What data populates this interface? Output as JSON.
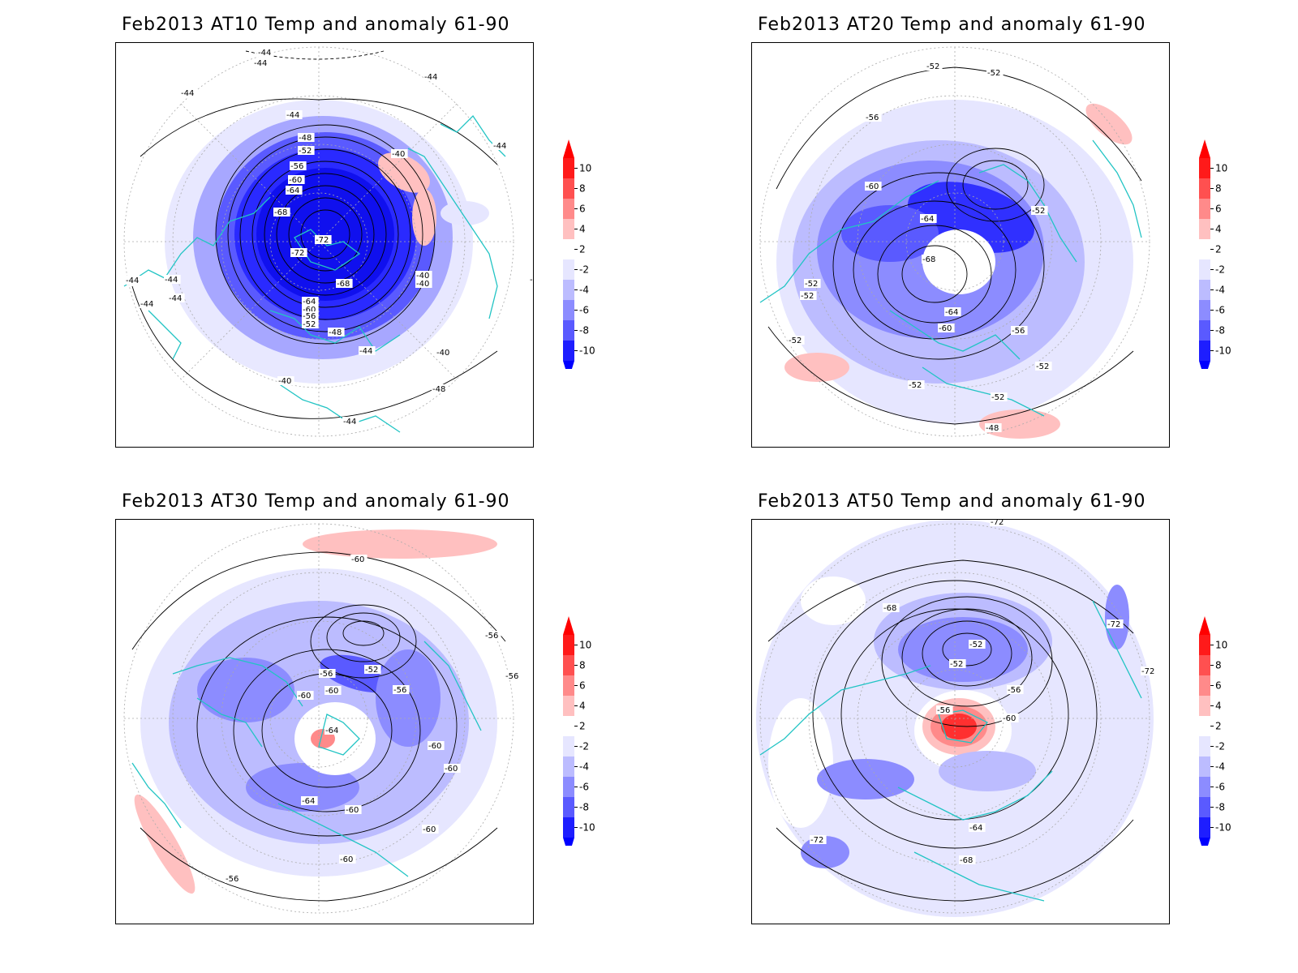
{
  "colorbar": {
    "ticks": [
      "10",
      "8",
      "6",
      "4",
      "2",
      "-2",
      "-4",
      "-6",
      "-8",
      "-10"
    ],
    "colors": [
      "#ff1a1a",
      "#ff5050",
      "#ff8a8a",
      "#ffc0c0",
      "#ffffff",
      "#e6e6ff",
      "#bcbcff",
      "#8c8cff",
      "#5a5aff",
      "#1e1eff"
    ],
    "over_color": "#ff0000",
    "under_color": "#0000ff"
  },
  "coastline_color": "#22c4c4",
  "panels": [
    {
      "id": "at10",
      "title": "Feb2013 AT10 Temp and anomaly 61-90",
      "contour_labels": [
        "-44",
        "-44",
        "-44",
        "-44",
        "-44",
        "-48",
        "-52",
        "-56",
        "-60",
        "-64",
        "-68",
        "-72",
        "-72",
        "-68",
        "-64",
        "-60",
        "-56",
        "-52",
        "-48",
        "-44",
        "-40",
        "-40",
        "-40",
        "-44",
        "-44",
        "-44",
        "-44",
        "-44",
        "-40",
        "-40",
        "-48",
        "-44",
        "-40"
      ]
    },
    {
      "id": "at20",
      "title": "Feb2013 AT20 Temp and anomaly 61-90",
      "contour_labels": [
        "-52",
        "-52",
        "-56",
        "-60",
        "-64",
        "-68",
        "-64",
        "-60",
        "-56",
        "-52",
        "-52",
        "-52",
        "-52",
        "-52",
        "-52",
        "-52",
        "-48"
      ]
    },
    {
      "id": "at30",
      "title": "Feb2013 AT30 Temp and anomaly 61-90",
      "contour_labels": [
        "-60",
        "-56",
        "-56",
        "-52",
        "-56",
        "-56",
        "-60",
        "-60",
        "-64",
        "-64",
        "-60",
        "-60",
        "-60",
        "-60",
        "-60",
        "-56"
      ]
    },
    {
      "id": "at50",
      "title": "Feb2013 AT50 Temp and anomaly 61-90",
      "contour_labels": [
        "-72",
        "-68",
        "-72",
        "-72",
        "-52",
        "-52",
        "-56",
        "-56",
        "-60",
        "-64",
        "-68",
        "-72"
      ]
    }
  ]
}
